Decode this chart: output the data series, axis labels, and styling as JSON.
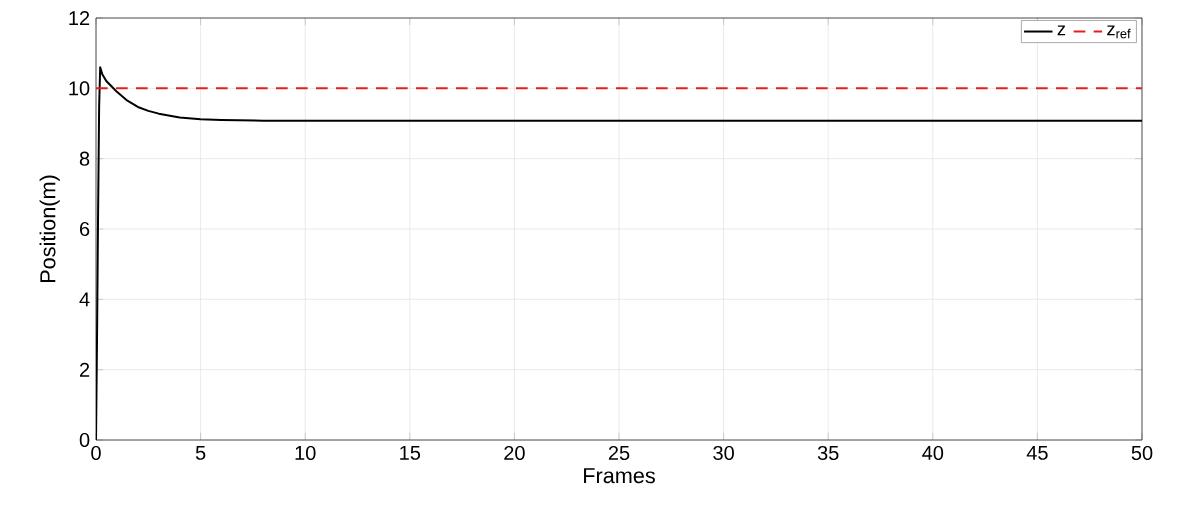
{
  "chart_data": {
    "type": "line",
    "xlabel": "Frames",
    "ylabel": "Position(m)",
    "xlim": [
      0,
      50
    ],
    "ylim": [
      0,
      12
    ],
    "xticks": [
      0,
      5,
      10,
      15,
      20,
      25,
      30,
      35,
      40,
      45,
      50
    ],
    "yticks": [
      0,
      2,
      4,
      6,
      8,
      10,
      12
    ],
    "grid": true,
    "legend": "top right",
    "marker": "none",
    "series": [
      {
        "name": "z",
        "color": "#000000",
        "line_style": "solid",
        "x": [
          0,
          0.05,
          0.1,
          0.15,
          0.2,
          0.3,
          0.5,
          0.75,
          1,
          1.5,
          2,
          2.5,
          3,
          4,
          5,
          6,
          8,
          10,
          20,
          30,
          40,
          50
        ],
        "values": [
          0,
          3,
          6.5,
          9.5,
          10.6,
          10.4,
          10.2,
          10.05,
          9.9,
          9.65,
          9.47,
          9.36,
          9.28,
          9.17,
          9.12,
          9.1,
          9.08,
          9.08,
          9.08,
          9.08,
          9.08,
          9.08
        ]
      },
      {
        "name": "z$_{ref}$",
        "color": "#e02020",
        "line_style": "dashed",
        "x": [
          0,
          50
        ],
        "values": [
          10,
          10
        ]
      }
    ]
  }
}
